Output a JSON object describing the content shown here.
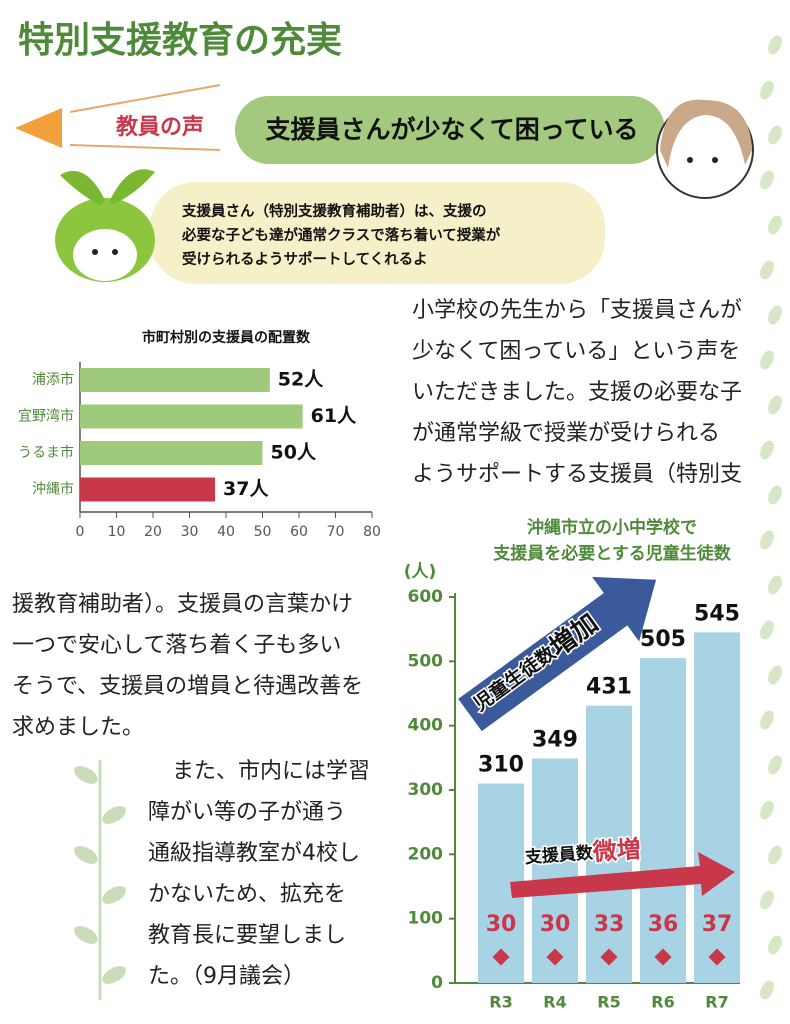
{
  "header": {
    "title": "特別支援教育の充実"
  },
  "voice": {
    "label": "教員の声",
    "quote": "支援員さんが少なくて困っている",
    "reply": [
      "支援員さん（特別支援教育補助者）は、支援の",
      "必要な子ども達が通常クラスで落ち着いて授業が",
      "受けられるようサポートしてくれるよ"
    ]
  },
  "body": {
    "column_right": [
      "小学校の先生から「支援員さんが",
      "少なくて困っている」という声を",
      "いただきました。支援の必要な子",
      "が通常学級で授業が受けられる",
      "ようサポートする支援員（特別支"
    ],
    "column_left": [
      "援教育補助者）。支援員の言葉かけ",
      "一つで安心して落ち着く子も多い",
      "そうで、支援員の増員と待遇改善を",
      "求めました。"
    ],
    "paragraph_2": [
      "また、市内には学習",
      "障がい等の子が通う",
      "通級指導教室が4校し",
      "かないため、拡充を",
      "教育長に要望しまし",
      "た。（9月議会）"
    ]
  },
  "chart_data": [
    {
      "type": "barh",
      "title": "市町村別の支援員の配置数",
      "categories": [
        "浦添市",
        "宜野湾市",
        "うるま市",
        "沖縄市"
      ],
      "values": [
        52,
        61,
        50,
        37
      ],
      "value_labels": [
        "52人",
        "61人",
        "50人",
        "37人"
      ],
      "colors": [
        "#9fca7c",
        "#9fca7c",
        "#9fca7c",
        "#c8374a"
      ],
      "xlim": [
        0,
        80
      ],
      "xticks": [
        0,
        10,
        20,
        30,
        40,
        50,
        60,
        70,
        80
      ]
    },
    {
      "type": "bar",
      "title": [
        "沖縄市立の小中学校で",
        "支援員を必要とする児童生徒数"
      ],
      "ylabel": "(人)",
      "categories": [
        "R3",
        "R4",
        "R5",
        "R6",
        "R7"
      ],
      "series": [
        {
          "color": "#a8d3e4",
          "values": [
            310,
            349,
            431,
            505,
            545
          ]
        },
        {
          "color": "#c8374a",
          "values": [
            30,
            30,
            33,
            36,
            37
          ]
        }
      ],
      "ylim": [
        0,
        600
      ],
      "yticks": [
        0,
        100,
        200,
        300,
        400,
        500,
        600
      ],
      "annotations": [
        {
          "text": "児童生徒数",
          "emphasis": "増加",
          "color": "#3a5a9c"
        },
        {
          "text": "支援員数",
          "emphasis": "微増",
          "color": "#c8374a"
        }
      ]
    }
  ]
}
